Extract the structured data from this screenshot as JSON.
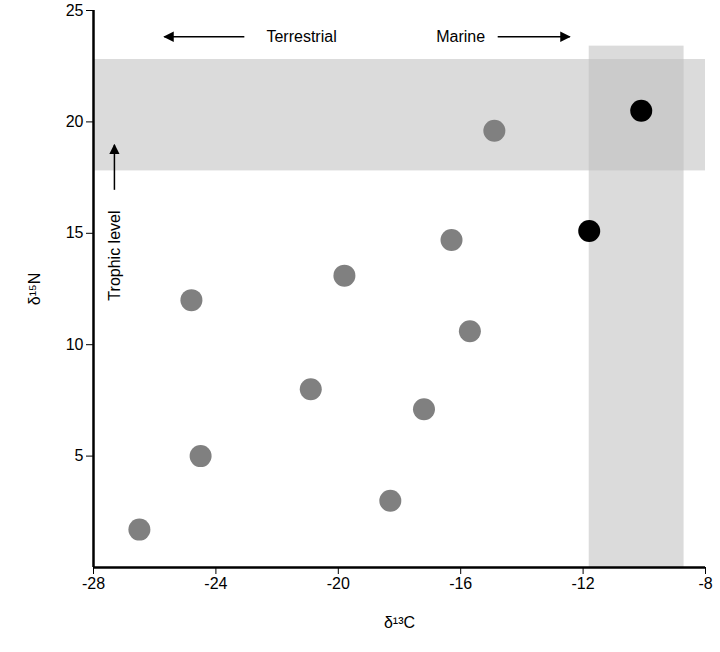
{
  "chart_data": {
    "type": "scatter",
    "xlabel": "δ¹³C",
    "ylabel": "δ¹⁵N",
    "x": [
      -26.5,
      -24.5,
      -24.8,
      -20.9,
      -19.8,
      -18.3,
      -17.2,
      -16.3,
      -15.7,
      -14.9,
      -11.8,
      -10.1
    ],
    "y": [
      1.7,
      5.0,
      12.0,
      8.0,
      13.1,
      3.0,
      7.1,
      14.7,
      10.6,
      19.6,
      15.1,
      20.5
    ],
    "colors": [
      "#808080",
      "#808080",
      "#808080",
      "#808080",
      "#808080",
      "#808080",
      "#808080",
      "#808080",
      "#808080",
      "#808080",
      "#000000",
      "#000000"
    ],
    "xlim": [
      -28,
      -8
    ],
    "xticks": [
      -28,
      -24,
      -20,
      -16,
      -12,
      -8
    ],
    "ylim": [
      0,
      25
    ],
    "yticks": [
      5,
      10,
      15,
      20,
      25
    ],
    "regions": [
      {
        "xlim": [
          -28,
          -8
        ],
        "ylim": [
          17.8,
          22.8
        ]
      },
      {
        "xlim": [
          -11.8,
          -8.7
        ],
        "ylim": [
          0,
          23.4
        ]
      }
    ],
    "annotations": [
      {
        "text": "Terrestrial",
        "x": -21.2,
        "y": 23.8,
        "arrow": "left"
      },
      {
        "text": "Marine",
        "x": -16.0,
        "y": 23.8,
        "arrow": "right"
      },
      {
        "text": "Trophic level",
        "x": -27.3,
        "y": 14.0,
        "arrow": "up"
      }
    ]
  }
}
